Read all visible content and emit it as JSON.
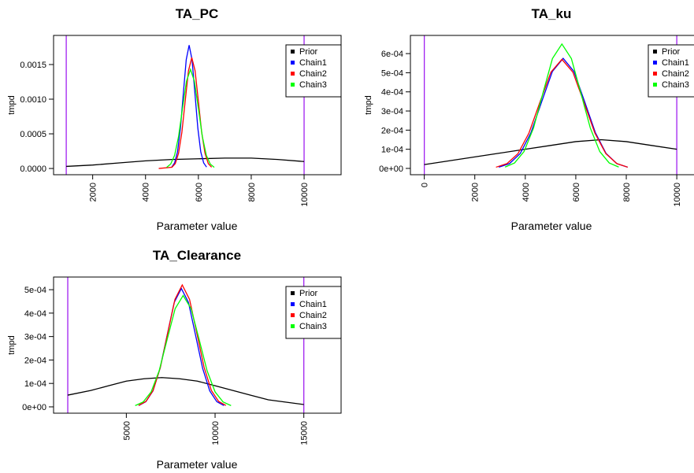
{
  "chart_data": [
    {
      "type": "line",
      "title": "TA_PC",
      "xlabel": "Parameter value",
      "ylabel": "tmpd",
      "legend": "topright",
      "xlim": [
        520,
        11400
      ],
      "ylim": [
        -9e-05,
        0.00192
      ],
      "xticks": [
        2000,
        4000,
        6000,
        8000,
        10000
      ],
      "yticks": [
        {
          "value": 0,
          "label": "0.0000"
        },
        {
          "value": 0.0005,
          "label": "0.0005"
        },
        {
          "value": 0.001,
          "label": "0.0010"
        },
        {
          "value": 0.0015,
          "label": "0.0015"
        }
      ],
      "vlines": [
        1000,
        10000
      ],
      "vline_color": "#a020f0",
      "series": [
        {
          "name": "Prior",
          "color": "#000000",
          "x": [
            1000,
            2000,
            3000,
            4000,
            5000,
            6000,
            7000,
            8000,
            9000,
            10000
          ],
          "values": [
            3e-05,
            5e-05,
            8e-05,
            0.00011,
            0.00013,
            0.00014,
            0.00015,
            0.00015,
            0.00013,
            0.0001
          ]
        },
        {
          "name": "Chain1",
          "color": "#0000ff",
          "x": [
            4990,
            5100,
            5210,
            5320,
            5430,
            5540,
            5650,
            5760,
            5870,
            5980,
            6090,
            6200,
            6310
          ],
          "values": [
            2e-05,
            8e-05,
            0.00024,
            0.00058,
            0.00108,
            0.00157,
            0.00178,
            0.00157,
            0.00108,
            0.00058,
            0.00024,
            8e-05,
            2e-05
          ]
        },
        {
          "name": "Chain2",
          "color": "#ff0000",
          "x": [
            4500,
            5000,
            5125,
            5250,
            5375,
            5500,
            5625,
            5750,
            5875,
            6000,
            6125,
            6250,
            6375,
            6500
          ],
          "values": [
            0,
            1.8e-05,
            7e-05,
            0.00022,
            0.00052,
            0.00097,
            0.00141,
            0.0016,
            0.00141,
            0.00097,
            0.00052,
            0.00022,
            7e-05,
            1.8e-05
          ]
        },
        {
          "name": "Chain3",
          "color": "#00ff00",
          "x": [
            4800,
            4950,
            5100,
            5250,
            5400,
            5550,
            5700,
            5850,
            6000,
            6150,
            6300,
            6450,
            6600
          ],
          "values": [
            1.6e-05,
            6.3e-05,
            0.00019,
            0.00046,
            0.00087,
            0.00126,
            0.00143,
            0.00126,
            0.00087,
            0.00046,
            0.00019,
            6.3e-05,
            1.6e-05
          ]
        }
      ]
    },
    {
      "type": "line",
      "title": "TA_ku",
      "xlabel": "Parameter value",
      "ylabel": "tmpd",
      "legend": "topright",
      "xlim": [
        -550,
        11150
      ],
      "ylim": [
        -3.3e-05,
        0.000695
      ],
      "xticks": [
        0,
        2000,
        4000,
        6000,
        8000,
        10000
      ],
      "yticks": [
        {
          "value": 0,
          "label": "0e+00"
        },
        {
          "value": 0.0001,
          "label": "1e-04"
        },
        {
          "value": 0.0002,
          "label": "2e-04"
        },
        {
          "value": 0.0003,
          "label": "3e-04"
        },
        {
          "value": 0.0004,
          "label": "4e-04"
        },
        {
          "value": 0.0005,
          "label": "5e-04"
        },
        {
          "value": 0.0006,
          "label": "6e-04"
        }
      ],
      "vlines": [
        0,
        10000
      ],
      "vline_color": "#a020f0",
      "series": [
        {
          "name": "Prior",
          "color": "#000000",
          "x": [
            0,
            1000,
            2000,
            3000,
            4000,
            5000,
            6000,
            7000,
            8000,
            9000,
            10000
          ],
          "values": [
            2e-05,
            4e-05,
            6e-05,
            8e-05,
            0.0001,
            0.00012,
            0.00014,
            0.00015,
            0.00014,
            0.00012,
            0.0001
          ]
        },
        {
          "name": "Chain1",
          "color": "#0000ff",
          "x": [
            2950,
            3375,
            3800,
            4225,
            4650,
            5075,
            5500,
            5925,
            6350,
            6775,
            7200,
            7625,
            8050
          ],
          "values": [
            6.4e-06,
            2.5e-05,
            7.8e-05,
            0.000187,
            0.000349,
            0.000507,
            0.000575,
            0.000507,
            0.000349,
            0.000187,
            7.8e-05,
            2.5e-05,
            6.4e-06
          ]
        },
        {
          "name": "Chain2",
          "color": "#ff0000",
          "x": [
            2840,
            3275,
            3710,
            4145,
            4580,
            5015,
            5450,
            5885,
            6320,
            6755,
            7190,
            7625,
            8060
          ],
          "values": [
            6.3e-06,
            2.5e-05,
            7.7e-05,
            0.000185,
            0.000346,
            0.000503,
            0.00057,
            0.000503,
            0.000346,
            0.000185,
            7.7e-05,
            2.5e-05,
            6.3e-06
          ]
        },
        {
          "name": "Chain3",
          "color": "#00ff00",
          "x": [
            3200,
            3575,
            3950,
            4325,
            4700,
            5075,
            5450,
            5825,
            6200,
            6575,
            6950,
            7325,
            7700
          ],
          "values": [
            7.2e-06,
            2.85e-05,
            8.8e-05,
            0.000211,
            0.000394,
            0.000574,
            0.00065,
            0.000574,
            0.000394,
            0.000211,
            8.8e-05,
            2.85e-05,
            7.2e-06
          ]
        }
      ]
    },
    {
      "type": "line",
      "title": "TA_Clearance",
      "xlabel": "Parameter value",
      "ylabel": "tmpd",
      "legend": "topright",
      "xlim": [
        900,
        17100
      ],
      "ylim": [
        -2.7e-05,
        0.000554
      ],
      "xticks": [
        5000,
        10000,
        15000
      ],
      "yticks": [
        {
          "value": 0,
          "label": "0e+00"
        },
        {
          "value": 0.0001,
          "label": "1e-04"
        },
        {
          "value": 0.0002,
          "label": "2e-04"
        },
        {
          "value": 0.0003,
          "label": "3e-04"
        },
        {
          "value": 0.0004,
          "label": "4e-04"
        },
        {
          "value": 0.0005,
          "label": "5e-04"
        }
      ],
      "vlines": [
        1700,
        15000
      ],
      "vline_color": "#a020f0",
      "series": [
        {
          "name": "Prior",
          "color": "#000000",
          "x": [
            1700,
            3000,
            4000,
            5000,
            6000,
            7000,
            8000,
            9000,
            10000,
            11000,
            12000,
            13000,
            14000,
            15000
          ],
          "values": [
            5e-05,
            7e-05,
            9e-05,
            0.00011,
            0.00012,
            0.000125,
            0.00012,
            0.00011,
            9e-05,
            7e-05,
            5e-05,
            3e-05,
            2e-05,
            1e-05
          ]
        },
        {
          "name": "Chain1",
          "color": "#0000ff",
          "x": [
            5700,
            6100,
            6500,
            6900,
            7300,
            7700,
            8100,
            8500,
            8900,
            9300,
            9700,
            10100,
            10500
          ],
          "values": [
            5.6e-06,
            2.2e-05,
            6.8e-05,
            0.000164,
            0.000306,
            0.000446,
            0.000505,
            0.000446,
            0.000306,
            0.000164,
            6.8e-05,
            2.2e-05,
            5.6e-06
          ]
        },
        {
          "name": "Chain2",
          "color": "#ff0000",
          "x": [
            5690,
            6100,
            6510,
            6920,
            7330,
            7740,
            8150,
            8560,
            8970,
            9380,
            9790,
            10200,
            10610
          ],
          "values": [
            5.8e-06,
            2.3e-05,
            7e-05,
            0.000169,
            0.000315,
            0.000459,
            0.00052,
            0.000459,
            0.000315,
            0.000169,
            7e-05,
            2.3e-05,
            5.8e-06
          ]
        },
        {
          "name": "Chain3",
          "color": "#00ff00",
          "x": [
            5500,
            5950,
            6400,
            6850,
            7300,
            7750,
            8200,
            8650,
            9100,
            9550,
            10000,
            10450,
            10900
          ],
          "values": [
            5.3e-06,
            2.1e-05,
            6.4e-05,
            0.000154,
            0.000288,
            0.000419,
            0.000475,
            0.000419,
            0.000288,
            0.000154,
            6.4e-05,
            2.1e-05,
            5.3e-06
          ]
        }
      ]
    }
  ]
}
